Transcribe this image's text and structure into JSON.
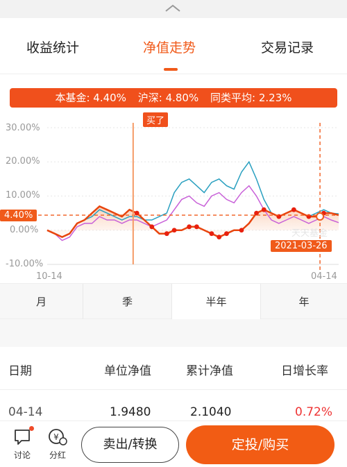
{
  "tabs": {
    "items": [
      {
        "label": "收益统计"
      },
      {
        "label": "净值走势"
      },
      {
        "label": "交易记录"
      }
    ],
    "active": "净值走势"
  },
  "summary": {
    "fund": "本基金: 4.40%",
    "hs300": "沪深: 4.80%",
    "peer_avg": "同类平均: 2.23%"
  },
  "chart": {
    "buy_tag": "买了",
    "current_value_tag": "4.40%",
    "date_tag": "2021-03-26",
    "watermark": "天天基金",
    "y_ticks": [
      "30.00%",
      "20.00%",
      "10.00%",
      "0.00%",
      "-10.00%"
    ],
    "x_start": "10-14",
    "x_end": "04-14",
    "colors": {
      "fund": "#e8450e",
      "hs300": "#2aa0c0",
      "peer": "#c860d8",
      "accent": "#f05a1a"
    }
  },
  "chart_data": {
    "type": "line",
    "xlabel": "",
    "ylabel": "",
    "ylim": [
      -10,
      30
    ],
    "x_range": [
      "10-14",
      "04-14"
    ],
    "series": [
      {
        "name": "本基金",
        "final": 4.4,
        "values": [
          0,
          -1,
          -2,
          -1,
          2,
          3,
          5,
          7,
          6,
          5,
          4,
          6,
          5,
          3,
          1,
          -1,
          -1,
          0,
          0,
          1,
          1,
          0,
          -1,
          -2,
          -1,
          0,
          0,
          2,
          5,
          6,
          5,
          4,
          5,
          6,
          5,
          4,
          4,
          5,
          5,
          4.4
        ]
      },
      {
        "name": "沪深",
        "final": 4.8,
        "values": [
          0,
          -1,
          -2,
          -1,
          2,
          3,
          4,
          6,
          5,
          4,
          3,
          4,
          4,
          3,
          3,
          4,
          5,
          11,
          14,
          15,
          13,
          11,
          14,
          15,
          13,
          12,
          17,
          20,
          15,
          9,
          5,
          4,
          5,
          6,
          5,
          4,
          5,
          6,
          5,
          4.8
        ]
      },
      {
        "name": "同类平均",
        "final": 2.23,
        "values": [
          0,
          -1,
          -3,
          -2,
          1,
          2,
          2,
          4,
          3,
          3,
          2,
          3,
          3,
          2,
          1,
          2,
          3,
          6,
          9,
          10,
          8,
          7,
          10,
          11,
          9,
          8,
          11,
          13,
          10,
          6,
          3,
          2,
          3,
          4,
          3,
          2,
          3,
          4,
          3,
          2.23
        ]
      }
    ]
  },
  "periods": [
    {
      "label": "月"
    },
    {
      "label": "季"
    },
    {
      "label": "半年"
    },
    {
      "label": "年"
    }
  ],
  "table": {
    "headers": [
      "日期",
      "单位净值",
      "累计净值",
      "日增长率"
    ],
    "rows": [
      {
        "date": "04-14",
        "nav": "1.9480",
        "acc_nav": "2.1040",
        "change": "0.72%"
      }
    ]
  },
  "bottom": {
    "discuss_label": "讨论",
    "dividend_label": "分红",
    "sell_label": "卖出/转换",
    "buy_label": "定投/购买"
  }
}
